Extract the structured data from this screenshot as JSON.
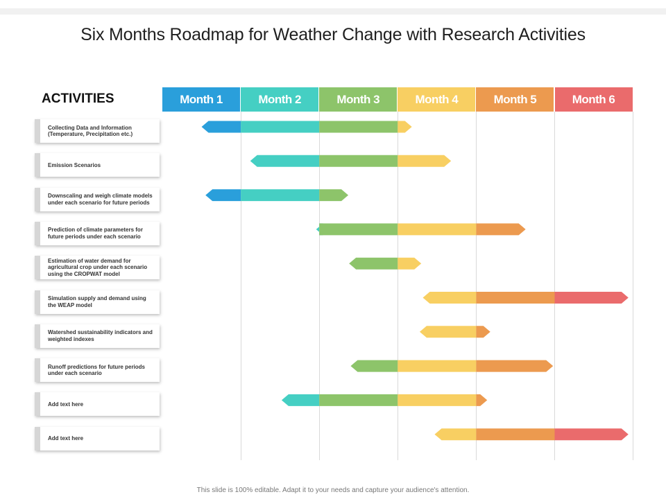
{
  "title": "Six Months Roadmap for Weather Change with Research Activities",
  "activities_heading": "ACTIVITIES",
  "footer": "This slide is 100% editable. Adapt it to your needs and capture your audience's attention.",
  "months": [
    {
      "label": "Month 1",
      "color": "#2a9fdb"
    },
    {
      "label": "Month 2",
      "color": "#45cfc3"
    },
    {
      "label": "Month 3",
      "color": "#8dc46a"
    },
    {
      "label": "Month 4",
      "color": "#f8cf62"
    },
    {
      "label": "Month 5",
      "color": "#ec9a4f"
    },
    {
      "label": "Month 6",
      "color": "#ea6b6c"
    }
  ],
  "activities": [
    {
      "text": "Collecting Data and Information (Temperature, Precipitation etc.)",
      "start": 0.5,
      "end": 3.18
    },
    {
      "text": "Emission Scenarios",
      "start": 1.12,
      "end": 3.68
    },
    {
      "text": "Downscaling and weigh climate models under each scenario for future periods",
      "start": 0.55,
      "end": 2.37
    },
    {
      "text": "Prediction of climate parameters for future periods under each scenario",
      "start": 1.96,
      "end": 4.63
    },
    {
      "text": "Estimation of water demand for agricultural crop under each scenario using the CROPWAT model",
      "start": 2.38,
      "end": 3.3
    },
    {
      "text": "Simulation supply and demand using the WEAP model",
      "start": 3.32,
      "end": 5.94
    },
    {
      "text": "Watershed sustainability indicators and weighted indexes",
      "start": 3.28,
      "end": 4.18
    },
    {
      "text": "Runoff predictions for future periods under each scenario",
      "start": 2.4,
      "end": 4.98
    },
    {
      "text": "Add text here",
      "start": 1.52,
      "end": 4.14
    },
    {
      "text": "Add text here",
      "start": 3.47,
      "end": 5.94
    }
  ]
}
